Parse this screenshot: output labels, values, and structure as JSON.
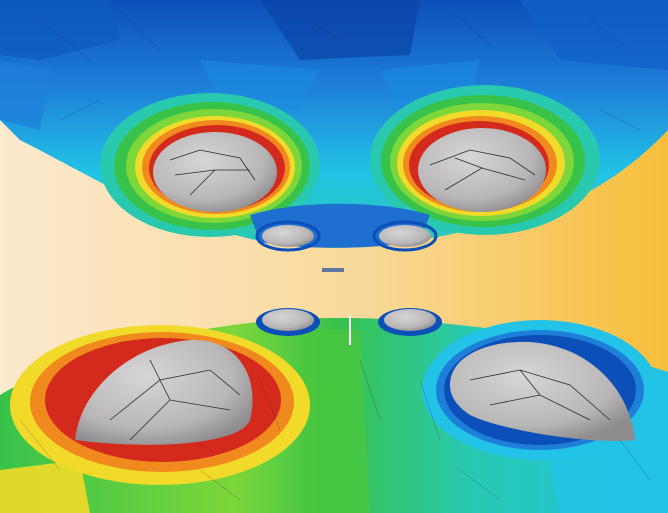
{
  "image": {
    "description_free": true,
    "palette": {
      "background_light": "#FCE9CE",
      "background_dark": "#F7BE3A",
      "deep_blue": "#0C4FB8",
      "cyan": "#22C3E6",
      "teal": "#29C9B0",
      "green": "#38C24A",
      "yellow": "#F2DA2A",
      "orange": "#F08A1E",
      "red": "#D42A1E",
      "dome_gray": "#B9B6B8",
      "dome_shadow": "#8F8C8F",
      "mesh_line": "#2B2B2B"
    }
  }
}
